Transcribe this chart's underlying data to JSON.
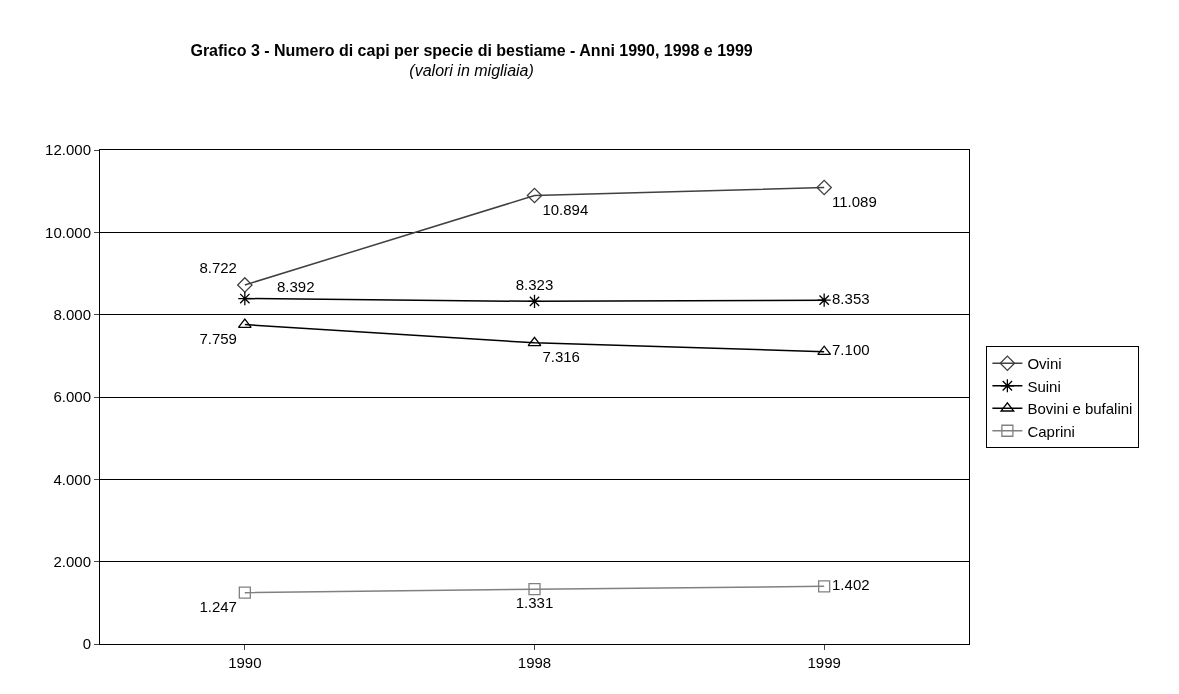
{
  "chart_data": {
    "type": "line",
    "title": "Grafico 3 - Numero di capi per specie di bestiame - Anni 1990, 1998 e 1999",
    "subtitle": "(valori in migliaia)",
    "categories": [
      "1990",
      "1998",
      "1999"
    ],
    "series": [
      {
        "name": "Ovini",
        "color": "#404040",
        "marker": "diamond",
        "values": [
          8722,
          10894,
          11089
        ],
        "value_labels": [
          "8.722",
          "10.894",
          "11.089"
        ]
      },
      {
        "name": "Suini",
        "color": "#000000",
        "marker": "cross",
        "values": [
          8392,
          8323,
          8353
        ],
        "value_labels": [
          "8.392",
          "8.323",
          "8.353"
        ]
      },
      {
        "name": "Bovini e bufalini",
        "color": "#000000",
        "marker": "triangle",
        "values": [
          7759,
          7316,
          7100
        ],
        "value_labels": [
          "7.759",
          "7.316",
          "7.100"
        ]
      },
      {
        "name": "Caprini",
        "color": "#808080",
        "marker": "square",
        "values": [
          1247,
          1331,
          1402
        ],
        "value_labels": [
          "1.247",
          "1.331",
          "1.402"
        ]
      }
    ],
    "ylim": [
      0,
      12000
    ],
    "yticks": [
      0,
      {
        "value": 2000,
        "label": "2.000"
      },
      {
        "value": 4000,
        "label": "4.000"
      },
      {
        "value": 6000,
        "label": "6.000"
      },
      {
        "value": 8000,
        "label": "8.000"
      },
      {
        "value": 10000,
        "label": "10.000"
      },
      {
        "value": 12000,
        "label": "12.000"
      }
    ],
    "grid": "y",
    "legend": "right",
    "line_style": "solid"
  }
}
